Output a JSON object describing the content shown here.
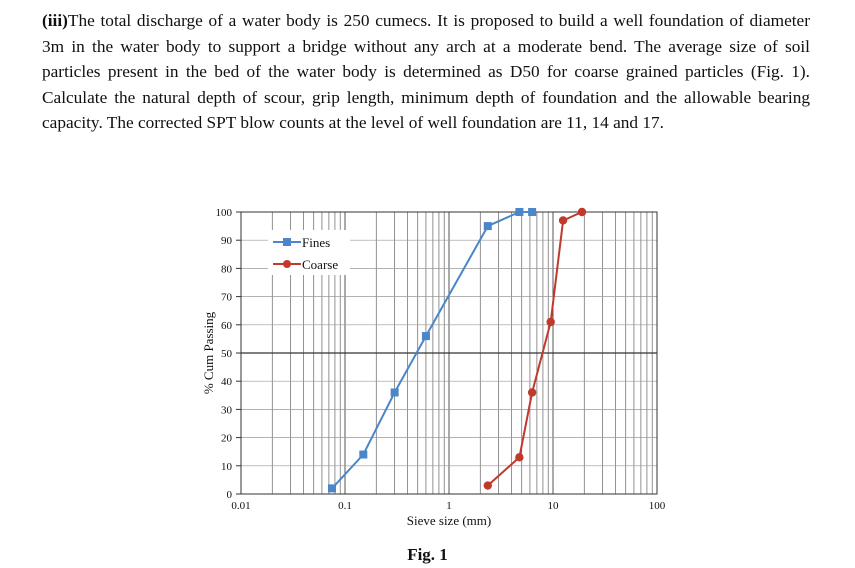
{
  "question": {
    "label": "(iii)",
    "text": "The total discharge of a water body is 250 cumecs. It is proposed to build a well foundation of diameter 3m in the water body to support a bridge without any arch at a moderate bend. The average size of soil particles present in the bed of the water body is determined as D50 for coarse grained particles (Fig. 1). Calculate the natural depth of scour, grip length, minimum depth of foundation and the allowable bearing capacity. The corrected SPT blow counts at the level of well foundation are 11, 14 and 17."
  },
  "figure": {
    "caption": "Fig. 1"
  },
  "chart_data": {
    "type": "line",
    "x_scale": "log",
    "xlabel": "Sieve size (mm)",
    "ylabel": "% Cum Passing",
    "xlim": [
      0.01,
      100
    ],
    "ylim": [
      0,
      100
    ],
    "x_ticks": [
      0.01,
      0.1,
      1,
      10,
      100
    ],
    "x_tick_labels": [
      "0.01",
      "0.1",
      "1",
      "10",
      "100"
    ],
    "y_ticks": [
      0,
      10,
      20,
      30,
      40,
      50,
      60,
      70,
      80,
      90,
      100
    ],
    "grid": true,
    "legend": "upper-left",
    "series": [
      {
        "name": "Fines",
        "color": "#4a86c8",
        "marker": "square",
        "x": [
          0.075,
          0.15,
          0.3,
          0.6,
          2.36,
          4.75,
          6.3
        ],
        "y": [
          2,
          14,
          36,
          56,
          95,
          100,
          100
        ]
      },
      {
        "name": "Coarse",
        "color": "#c0392b",
        "marker": "circle",
        "x": [
          2.36,
          4.75,
          6.3,
          9.5,
          12.5,
          19
        ],
        "y": [
          3,
          13,
          36,
          61,
          97,
          100
        ]
      }
    ]
  }
}
